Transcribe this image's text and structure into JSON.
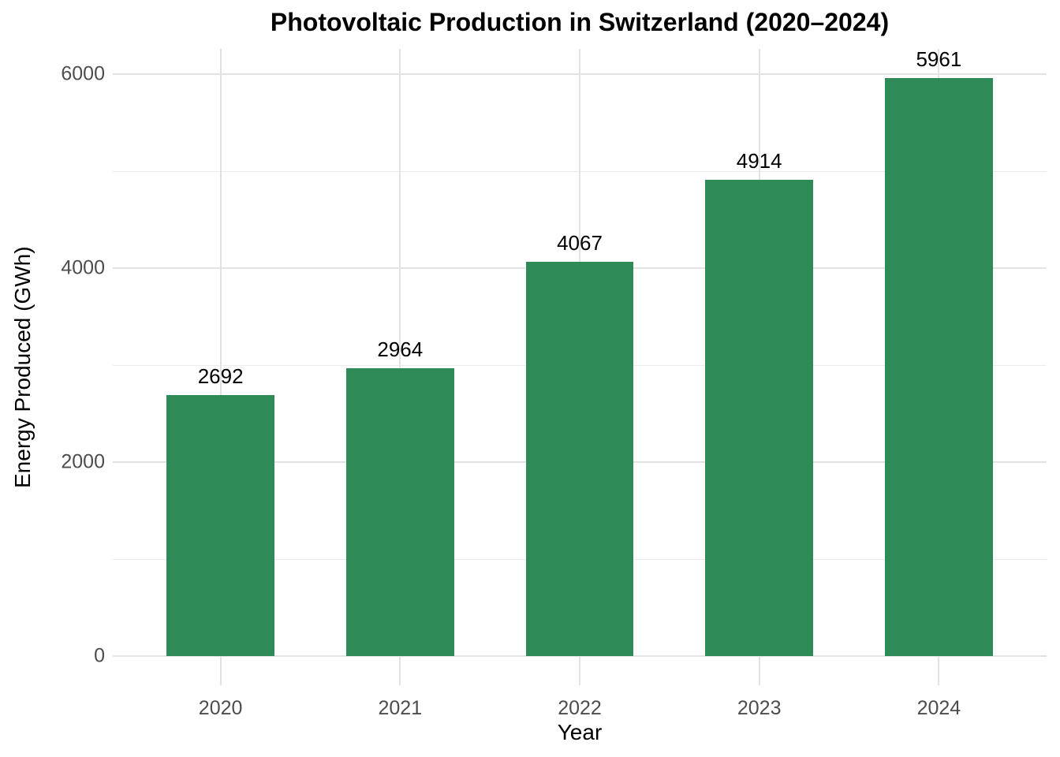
{
  "chart_data": {
    "type": "bar",
    "title": "Photovoltaic Production in Switzerland (2020–2024)",
    "xlabel": "Year",
    "ylabel": "Energy Produced (GWh)",
    "categories": [
      "2020",
      "2021",
      "2022",
      "2023",
      "2024"
    ],
    "values": [
      2692,
      2964,
      4067,
      4914,
      5961
    ],
    "value_labels": [
      "2692",
      "2964",
      "4067",
      "4914",
      "5961"
    ],
    "ylim": [
      0,
      6000
    ],
    "yticks_labeled": [
      0,
      2000,
      4000,
      6000
    ],
    "ytick_labels": [
      "0",
      "2000",
      "4000",
      "6000"
    ],
    "ytick_minor_step": 1000,
    "bar_width_fraction": 0.6,
    "legend": "none",
    "grid": "on",
    "colors": {
      "bar": "#2E8B57",
      "axis_text": "#4D4D4D",
      "label_text": "#000000",
      "grid_major": "#E3E3E3",
      "grid_minor": "#EBEBEB",
      "background": "#FFFFFF"
    }
  }
}
